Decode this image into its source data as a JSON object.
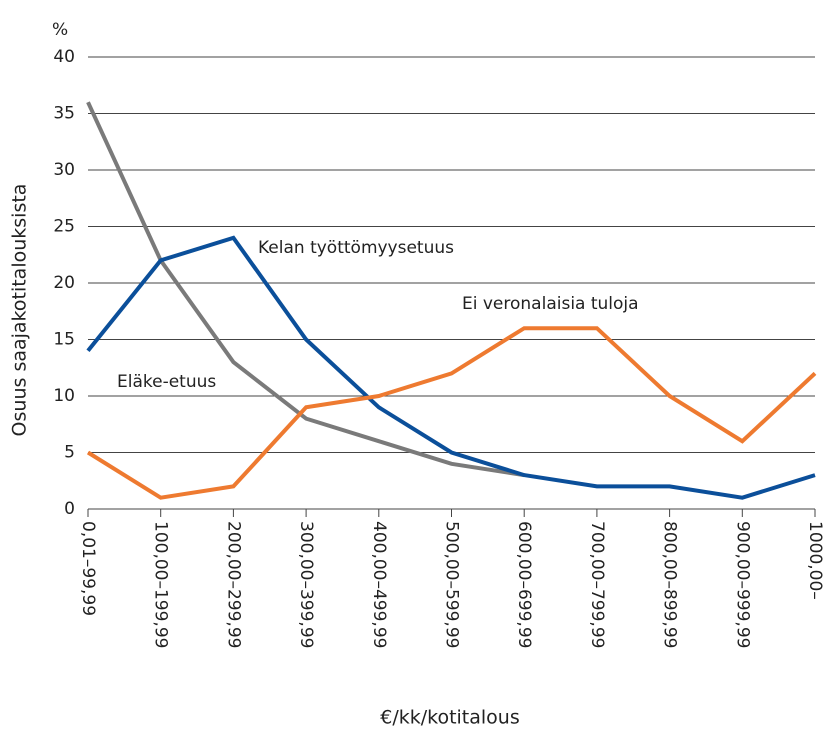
{
  "chart_data": {
    "type": "line",
    "y_unit": "%",
    "y_label": "Osuus saajakotitalouksista",
    "x_label": "€/kk/kotitalous",
    "categories": [
      "0,01–99,99",
      "100,00–199,99",
      "200,00–299,99",
      "300,00–399,99",
      "400,00–499,99",
      "500,00–599,99",
      "600,00–699,99",
      "700,00–799,99",
      "800,00–899,99",
      "900,00–999,99",
      "1000,00–"
    ],
    "series": [
      {
        "name": "Eläke-etuus",
        "color": "#7a7a7a",
        "values": [
          36,
          22,
          13,
          8,
          6,
          4,
          3,
          null,
          null,
          null,
          null
        ]
      },
      {
        "name": "Kelan työttömyysetuus",
        "color": "#0b4f9a",
        "values": [
          14,
          22,
          24,
          15,
          9,
          5,
          3,
          2,
          2,
          1,
          3
        ]
      },
      {
        "name": "Ei veronalaisia tuloja",
        "color": "#ee7a30",
        "values": [
          5,
          1,
          2,
          9,
          10,
          12,
          16,
          16,
          10,
          6,
          12
        ]
      }
    ],
    "ylim": [
      0,
      40
    ],
    "yticks": [
      0,
      5,
      10,
      15,
      20,
      25,
      30,
      35,
      40
    ],
    "grid": true
  }
}
